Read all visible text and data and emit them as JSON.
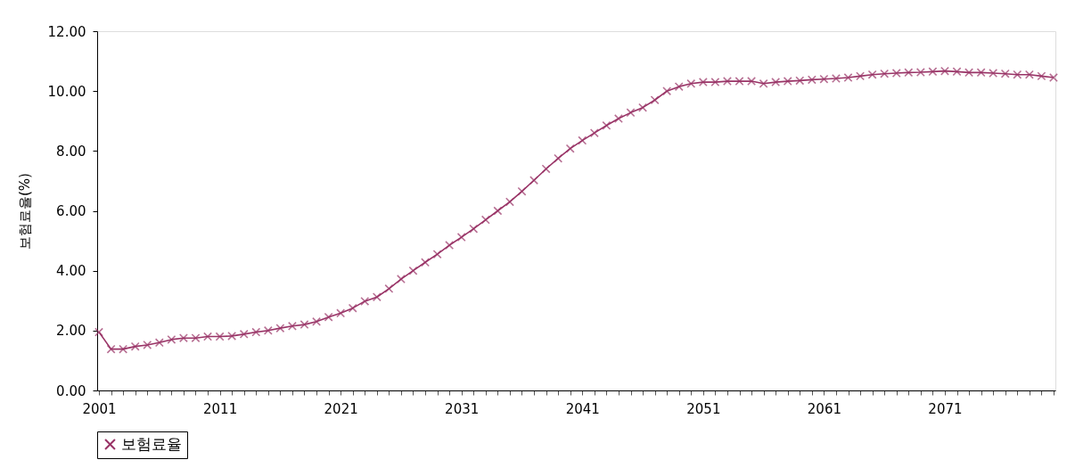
{
  "chart_data": {
    "type": "line",
    "ylabel": "보험료율(%)",
    "categories": [
      "2001",
      null,
      null,
      null,
      null,
      null,
      null,
      null,
      null,
      null,
      "2011",
      null,
      null,
      null,
      null,
      null,
      null,
      null,
      null,
      null,
      "2021",
      null,
      null,
      null,
      null,
      null,
      null,
      null,
      null,
      null,
      "2031",
      null,
      null,
      null,
      null,
      null,
      null,
      null,
      null,
      null,
      "2041",
      null,
      null,
      null,
      null,
      null,
      null,
      null,
      null,
      null,
      "2051",
      null,
      null,
      null,
      null,
      null,
      null,
      null,
      null,
      null,
      "2061",
      null,
      null,
      null,
      null,
      null,
      null,
      null,
      null,
      null,
      "2071",
      null,
      null,
      null,
      null,
      null,
      null,
      null,
      null,
      null
    ],
    "series": [
      {
        "name": "보험료율",
        "color": "#993366",
        "values": [
          1.95,
          1.38,
          1.38,
          1.47,
          1.52,
          1.6,
          1.7,
          1.75,
          1.75,
          1.8,
          1.8,
          1.82,
          1.88,
          1.95,
          2.0,
          2.08,
          2.15,
          2.2,
          2.3,
          2.45,
          2.58,
          2.75,
          2.98,
          3.12,
          3.4,
          3.72,
          4.0,
          4.28,
          4.55,
          4.85,
          5.12,
          5.4,
          5.7,
          6.0,
          6.3,
          6.65,
          7.02,
          7.4,
          7.75,
          8.08,
          8.35,
          8.6,
          8.85,
          9.08,
          9.28,
          9.45,
          9.7,
          10.0,
          10.15,
          10.25,
          10.3,
          10.3,
          10.33,
          10.33,
          10.33,
          10.25,
          10.3,
          10.33,
          10.35,
          10.38,
          10.4,
          10.42,
          10.45,
          10.5,
          10.55,
          10.58,
          10.6,
          10.62,
          10.63,
          10.65,
          10.67,
          10.65,
          10.62,
          10.62,
          10.6,
          10.58,
          10.55,
          10.55,
          10.5,
          10.45
        ]
      }
    ],
    "ylim": [
      0,
      12
    ],
    "yticks": [
      {
        "value": 0,
        "label": "0.00"
      },
      {
        "value": 2,
        "label": "2.00"
      },
      {
        "value": 4,
        "label": "4.00"
      },
      {
        "value": 6,
        "label": "6.00"
      },
      {
        "value": 8,
        "label": "8.00"
      },
      {
        "value": 10,
        "label": "10.00"
      },
      {
        "value": 12,
        "label": "12.00"
      }
    ],
    "grid": false,
    "legend": "bottom",
    "marker": "cross",
    "line_style": "solid"
  }
}
